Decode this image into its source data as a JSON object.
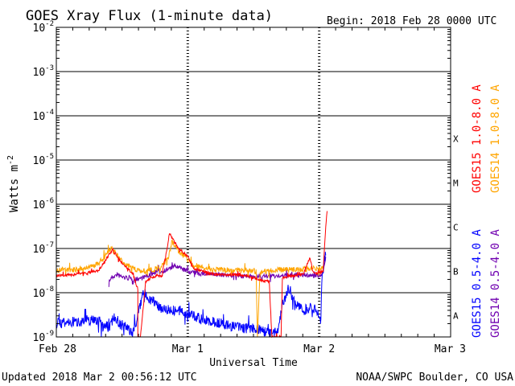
{
  "chart_data": {
    "type": "line",
    "title": "GOES Xray Flux (1-minute data)",
    "begin_label": "Begin:  2018 Feb 28 0000 UTC",
    "xlabel": "Universal Time",
    "ylabel": "Watts m",
    "ylabel_exponent": "-2",
    "x_ticks": [
      "Feb 28",
      "Mar 1",
      "Mar 2",
      "Mar 3"
    ],
    "x_range_days": [
      0,
      3
    ],
    "y_scale": "log",
    "ylim": [
      1e-09,
      0.01
    ],
    "y_tick_exponents": [
      "-2",
      "-3",
      "-4",
      "-5",
      "-6",
      "-7",
      "-8",
      "-9"
    ],
    "flare_classes": [
      "X",
      "M",
      "C",
      "B",
      "A"
    ],
    "grid": true,
    "series": [
      {
        "name": "GOES15 1.0-8.0 A",
        "color": "#ff0000",
        "noise": 0.03,
        "points": [
          [
            0.0,
            2.4e-08
          ],
          [
            0.15,
            2.6e-08
          ],
          [
            0.32,
            3.2e-08
          ],
          [
            0.43,
            9.5e-08
          ],
          [
            0.5,
            4.5e-08
          ],
          [
            0.58,
            2.8e-08
          ],
          [
            0.62,
            1.2e-08
          ],
          [
            0.62,
            1e-09
          ],
          [
            0.64,
            1e-09
          ],
          [
            0.68,
            1.8e-08
          ],
          [
            0.72,
            2.2e-08
          ],
          [
            0.78,
            2.5e-08
          ],
          [
            0.8,
            2.3e-08
          ],
          [
            0.85,
            1.3e-07
          ],
          [
            0.86,
            2.2e-07
          ],
          [
            0.92,
            1.1e-07
          ],
          [
            1.0,
            6.5e-08
          ],
          [
            1.05,
            3.5e-08
          ],
          [
            1.2,
            2.6e-08
          ],
          [
            1.4,
            2.5e-08
          ],
          [
            1.48,
            2.3e-08
          ],
          [
            1.58,
            1.8e-08
          ],
          [
            1.62,
            1.8e-08
          ],
          [
            1.64,
            1e-09
          ],
          [
            1.71,
            1e-09
          ],
          [
            1.72,
            2.2e-08
          ],
          [
            1.78,
            2.4e-08
          ],
          [
            1.88,
            2.6e-08
          ],
          [
            1.93,
            6.5e-08
          ],
          [
            1.95,
            3e-08
          ],
          [
            1.98,
            2.7e-08
          ],
          [
            2.03,
            3e-08
          ],
          [
            2.04,
            1e-07
          ],
          [
            2.05,
            3e-07
          ],
          [
            2.06,
            7e-07
          ]
        ]
      },
      {
        "name": "GOES14 1.0-8.0 A",
        "color": "#ffa500",
        "noise": 0.06,
        "points": [
          [
            0.0,
            3.2e-08
          ],
          [
            0.2,
            3.4e-08
          ],
          [
            0.32,
            4.5e-08
          ],
          [
            0.42,
            1e-07
          ],
          [
            0.5,
            5e-08
          ],
          [
            0.58,
            3.5e-08
          ],
          [
            0.68,
            3e-08
          ],
          [
            0.76,
            3.5e-08
          ],
          [
            0.8,
            3.8e-08
          ],
          [
            0.85,
            6e-08
          ],
          [
            0.88,
            1.4e-07
          ],
          [
            0.95,
            7.5e-08
          ],
          [
            1.05,
            4e-08
          ],
          [
            1.2,
            3.3e-08
          ],
          [
            1.45,
            3.2e-08
          ],
          [
            1.52,
            3e-08
          ],
          [
            1.53,
            1e-09
          ],
          [
            1.55,
            3e-08
          ],
          [
            1.7,
            3.3e-08
          ],
          [
            1.85,
            3.4e-08
          ],
          [
            1.95,
            3.5e-08
          ],
          [
            2.03,
            3.5e-08
          ]
        ]
      },
      {
        "name": "GOES15 0.5-4.0 A",
        "color": "#0000ff",
        "noise": 0.12,
        "points": [
          [
            0.0,
            2e-09
          ],
          [
            0.15,
            2.2e-09
          ],
          [
            0.3,
            2.5e-09
          ],
          [
            0.4,
            1.6e-09
          ],
          [
            0.44,
            3e-09
          ],
          [
            0.48,
            2e-09
          ],
          [
            0.55,
            1.5e-09
          ],
          [
            0.58,
            1.2e-09
          ],
          [
            0.62,
            3e-09
          ],
          [
            0.66,
            1e-08
          ],
          [
            0.72,
            7e-09
          ],
          [
            0.8,
            4.5e-09
          ],
          [
            0.9,
            4e-09
          ],
          [
            1.0,
            3.5e-09
          ],
          [
            1.1,
            2.5e-09
          ],
          [
            1.25,
            2e-09
          ],
          [
            1.4,
            1.6e-09
          ],
          [
            1.5,
            1.5e-09
          ],
          [
            1.56,
            1.5e-09
          ],
          [
            1.6,
            1.3e-09
          ],
          [
            1.68,
            1.2e-09
          ],
          [
            1.72,
            5e-09
          ],
          [
            1.76,
            1.2e-08
          ],
          [
            1.82,
            6e-09
          ],
          [
            1.88,
            4e-09
          ],
          [
            1.95,
            5e-09
          ],
          [
            2.0,
            3e-09
          ],
          [
            2.01,
            2.5e-09
          ],
          [
            2.02,
            2e-08
          ],
          [
            2.04,
            5.5e-08
          ],
          [
            2.05,
            7e-08
          ]
        ]
      },
      {
        "name": "GOES14 0.5-4.0 A",
        "color": "#7000b0",
        "noise": 0.05,
        "points": [
          [
            0.4,
            1.8e-08
          ],
          [
            0.42,
            2.2e-08
          ],
          [
            0.46,
            2.5e-08
          ],
          [
            0.52,
            2.2e-08
          ],
          [
            0.6,
            2e-08
          ],
          [
            0.7,
            2.4e-08
          ],
          [
            0.76,
            3e-08
          ],
          [
            0.8,
            3e-08
          ],
          [
            0.85,
            3.4e-08
          ],
          [
            0.9,
            4e-08
          ],
          [
            0.95,
            3.6e-08
          ],
          [
            1.0,
            3e-08
          ],
          [
            1.1,
            2.7e-08
          ],
          [
            1.3,
            2.5e-08
          ],
          [
            1.5,
            2.3e-08
          ],
          [
            1.7,
            2.4e-08
          ],
          [
            1.9,
            2.5e-08
          ],
          [
            2.02,
            2.5e-08
          ],
          [
            2.04,
            4.5e-08
          ],
          [
            2.05,
            6.5e-08
          ]
        ]
      }
    ]
  },
  "footer": {
    "updated": "Updated 2018 Mar  2 00:56:12 UTC",
    "source": "NOAA/SWPC Boulder, CO USA"
  }
}
